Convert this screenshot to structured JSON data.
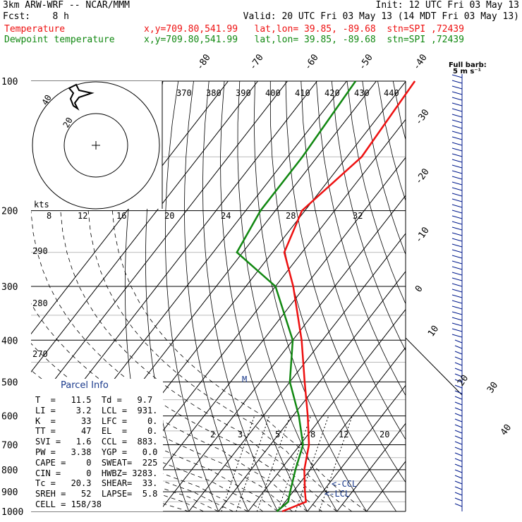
{
  "header": {
    "model": "3km ARW-WRF -- NCAR/MMM",
    "init": "Init: 12 UTC Fri 03 May 13",
    "fcst": "Fcst:    8 h",
    "valid": "Valid: 20 UTC Fri 03 May 13 (14 MDT Fri 03 May 13)",
    "temp_label": "Temperature",
    "dew_label": "Dewpoint temperature",
    "temp_info": "x,y=709.80,541.99   lat,lon= 39.85, -89.68  stn=SPI ,72439",
    "dew_info": "x,y=709.80,541.99   lat,lon= 39.85, -89.68  stn=SPI ,72439"
  },
  "colors": {
    "temperature": "#ee1111",
    "dewpoint": "#118811",
    "barbs": "#001a8c",
    "parcel_title": "#1a3a8c"
  },
  "chart_data": {
    "type": "skew-t",
    "pressure_levels": [
      "100",
      "200",
      "300",
      "400",
      "500",
      "600",
      "700",
      "800",
      "900",
      "1000"
    ],
    "temp_tick_labels": [
      "-80",
      "-70",
      "-60",
      "-50",
      "-40",
      "-30",
      "-20",
      "-10",
      "0",
      "10",
      "20",
      "30",
      "40"
    ],
    "theta_labels": [
      "370",
      "380",
      "390",
      "400",
      "410",
      "420",
      "430",
      "440"
    ],
    "mixing_ratio_labels": [
      "2",
      "3",
      "5",
      "8",
      "12",
      "20"
    ],
    "hodograph_speed_labels": [
      "8",
      "12",
      "16",
      "20",
      "24",
      "28",
      "32"
    ],
    "hodograph_ring_labels": [
      "40",
      "20"
    ],
    "hodograph_units": "kts",
    "left_axis_extra": [
      "290",
      "280",
      "270"
    ],
    "full_barb_label": "Full barb:",
    "full_barb_units": "5 m s⁻¹",
    "ccl_label": "CCL",
    "lcl_label": "LCL",
    "m_marker": "M",
    "temperature_profile": [
      {
        "p": 100,
        "t": -57
      },
      {
        "p": 150,
        "t": -55
      },
      {
        "p": 200,
        "t": -61
      },
      {
        "p": 250,
        "t": -56
      },
      {
        "p": 300,
        "t": -44
      },
      {
        "p": 400,
        "t": -27
      },
      {
        "p": 500,
        "t": -15
      },
      {
        "p": 600,
        "t": -5
      },
      {
        "p": 700,
        "t": 3
      },
      {
        "p": 800,
        "t": 8
      },
      {
        "p": 900,
        "t": 14
      },
      {
        "p": 950,
        "t": 17
      },
      {
        "p": 1000,
        "t": 11.5
      }
    ],
    "dewpoint_profile": [
      {
        "p": 100,
        "t": -77
      },
      {
        "p": 150,
        "t": -75
      },
      {
        "p": 200,
        "t": -75
      },
      {
        "p": 250,
        "t": -72
      },
      {
        "p": 300,
        "t": -50
      },
      {
        "p": 400,
        "t": -30
      },
      {
        "p": 500,
        "t": -20
      },
      {
        "p": 600,
        "t": -8
      },
      {
        "p": 700,
        "t": 1
      },
      {
        "p": 800,
        "t": 5
      },
      {
        "p": 900,
        "t": 9
      },
      {
        "p": 950,
        "t": 11
      },
      {
        "p": 1000,
        "t": 9.7
      }
    ]
  },
  "parcel_info": {
    "title": "Parcel Info",
    "rows": [
      "T  =   11.5  Td =   9.7",
      "LI =    3.2  LCL =  931.",
      "K  =     33  LFC =    0.",
      "TT =     47  EL  =    0.",
      "SVI =   1.6  CCL =  883.",
      "PW =   3.38  YGP =   0.0",
      "CAPE =    0  SWEAT=  225",
      "CIN =     0  HWBZ= 3283.",
      "Tc =   20.3  SHEAR=  33.",
      "SREH =   52  LAPSE=  5.8",
      "CELL = 158/38"
    ]
  }
}
